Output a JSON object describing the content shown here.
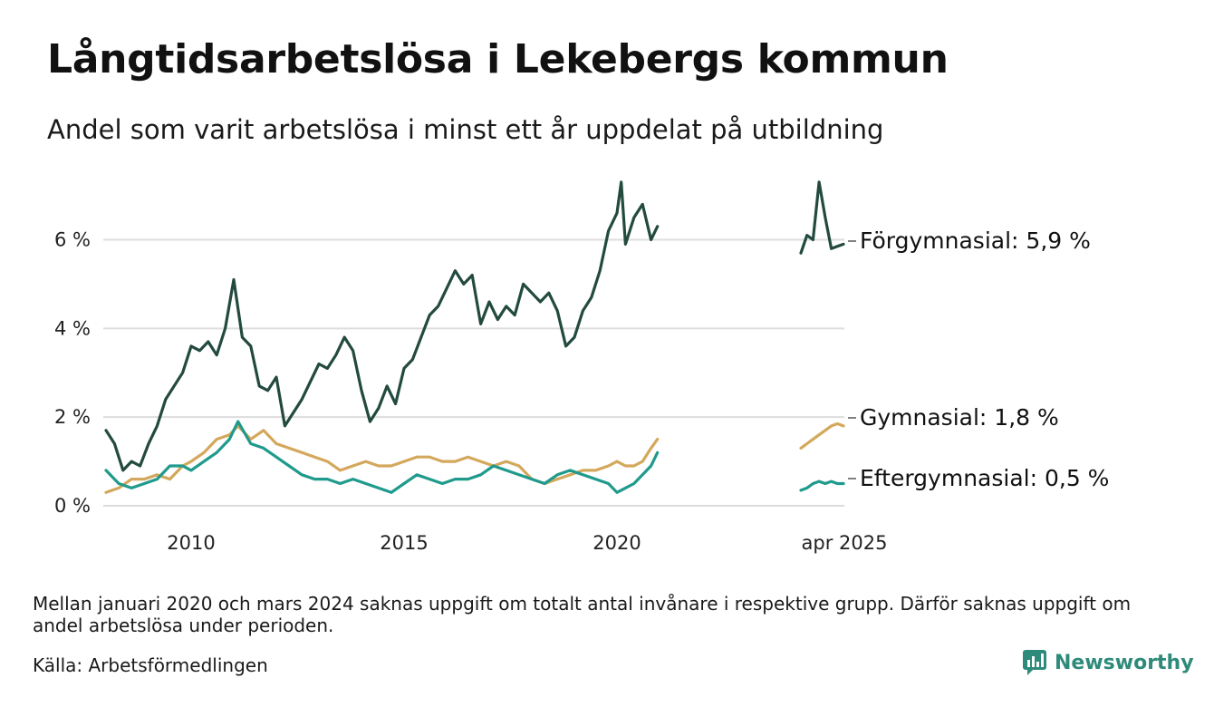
{
  "header": {
    "title": "Långtidsarbetslösa i Lekebergs kommun",
    "subtitle": "Andel som varit arbetslösa i minst ett år uppdelat på utbildning"
  },
  "footer": {
    "note": "Mellan januari 2020 och mars 2024 saknas uppgift om totalt antal invånare i respektive grupp. Därför saknas uppgift om andel arbetslösa under perioden.",
    "source": "Källa: Arbetsförmedlingen",
    "brand": "Newsworthy"
  },
  "colors": {
    "forgymnasial": "#234a3f",
    "gymnasial": "#d4a85c",
    "eftergymnasial": "#1f9a8c",
    "grid": "#dddddd",
    "brand": "#2e8a7a"
  },
  "chart_data": {
    "type": "line",
    "ylim": [
      0,
      7.4
    ],
    "yticks": [
      0,
      2,
      4,
      6
    ],
    "ytick_labels": [
      "0 %",
      "2 %",
      "4 %",
      "6 %"
    ],
    "xticks": [
      2010,
      2015,
      2020
    ],
    "xtick_labels": [
      "2010",
      "2015",
      "2020"
    ],
    "x2_label": "apr 2025",
    "grid": true,
    "legend": "inline-right",
    "series": [
      {
        "key": "forgymnasial",
        "name": "Förgymnasial",
        "label": "Förgymnasial: 5,9 %",
        "segment1": {
          "x": [
            2008.0,
            2008.2,
            2008.4,
            2008.6,
            2008.8,
            2009.0,
            2009.2,
            2009.4,
            2009.6,
            2009.8,
            2010.0,
            2010.2,
            2010.4,
            2010.6,
            2010.8,
            2011.0,
            2011.2,
            2011.4,
            2011.6,
            2011.8,
            2012.0,
            2012.2,
            2012.4,
            2012.6,
            2012.8,
            2013.0,
            2013.2,
            2013.4,
            2013.6,
            2013.8,
            2014.0,
            2014.2,
            2014.4,
            2014.6,
            2014.8,
            2015.0,
            2015.2,
            2015.4,
            2015.6,
            2015.8,
            2016.0,
            2016.2,
            2016.4,
            2016.6,
            2016.8,
            2017.0,
            2017.2,
            2017.4,
            2017.6,
            2017.8,
            2018.0,
            2018.2,
            2018.4,
            2018.6,
            2018.8,
            2019.0,
            2019.2,
            2019.4,
            2019.6,
            2019.8,
            2020.0,
            2020.1,
            2020.2,
            2020.4,
            2020.6,
            2020.8,
            2020.95
          ],
          "y": [
            1.7,
            1.4,
            0.8,
            1.0,
            0.9,
            1.4,
            1.8,
            2.4,
            2.7,
            3.0,
            3.6,
            3.5,
            3.7,
            3.4,
            4.0,
            5.1,
            3.8,
            3.6,
            2.7,
            2.6,
            2.9,
            1.8,
            2.1,
            2.4,
            2.8,
            3.2,
            3.1,
            3.4,
            3.8,
            3.5,
            2.6,
            1.9,
            2.2,
            2.7,
            2.3,
            3.1,
            3.3,
            3.8,
            4.3,
            4.5,
            4.9,
            5.3,
            5.0,
            5.2,
            4.1,
            4.6,
            4.2,
            4.5,
            4.3,
            5.0,
            4.8,
            4.6,
            4.8,
            4.4,
            3.6,
            3.8,
            4.4,
            4.7,
            5.3,
            6.2,
            6.6,
            7.3,
            5.9,
            6.5,
            6.8,
            6.0,
            6.3
          ]
        },
        "segment2": {
          "x": [
            2024.25,
            2024.4,
            2024.55,
            2024.7,
            2024.85,
            2025.0,
            2025.15,
            2025.3
          ],
          "y": [
            5.7,
            6.1,
            6.0,
            7.3,
            6.5,
            5.8,
            5.85,
            5.9
          ]
        }
      },
      {
        "key": "gymnasial",
        "name": "Gymnasial",
        "label": "Gymnasial: 1,8 %",
        "segment1": {
          "x": [
            2008.0,
            2008.3,
            2008.6,
            2008.9,
            2009.2,
            2009.5,
            2009.8,
            2010.0,
            2010.3,
            2010.6,
            2010.9,
            2011.1,
            2011.4,
            2011.7,
            2012.0,
            2012.3,
            2012.6,
            2012.9,
            2013.2,
            2013.5,
            2013.8,
            2014.1,
            2014.4,
            2014.7,
            2015.0,
            2015.3,
            2015.6,
            2015.9,
            2016.2,
            2016.5,
            2016.8,
            2017.1,
            2017.4,
            2017.7,
            2018.0,
            2018.3,
            2018.6,
            2018.9,
            2019.2,
            2019.5,
            2019.8,
            2020.0,
            2020.2,
            2020.4,
            2020.6,
            2020.8,
            2020.95
          ],
          "y": [
            0.3,
            0.4,
            0.6,
            0.6,
            0.7,
            0.6,
            0.9,
            1.0,
            1.2,
            1.5,
            1.6,
            1.8,
            1.5,
            1.7,
            1.4,
            1.3,
            1.2,
            1.1,
            1.0,
            0.8,
            0.9,
            1.0,
            0.9,
            0.9,
            1.0,
            1.1,
            1.1,
            1.0,
            1.0,
            1.1,
            1.0,
            0.9,
            1.0,
            0.9,
            0.6,
            0.5,
            0.6,
            0.7,
            0.8,
            0.8,
            0.9,
            1.0,
            0.9,
            0.9,
            1.0,
            1.3,
            1.5
          ]
        },
        "segment2": {
          "x": [
            2024.25,
            2024.4,
            2024.55,
            2024.7,
            2024.85,
            2025.0,
            2025.15,
            2025.3
          ],
          "y": [
            1.3,
            1.4,
            1.5,
            1.6,
            1.7,
            1.8,
            1.85,
            1.8
          ]
        }
      },
      {
        "key": "eftergymnasial",
        "name": "Eftergymnasial",
        "label": "Eftergymnasial: 0,5 %",
        "segment1": {
          "x": [
            2008.0,
            2008.3,
            2008.6,
            2008.9,
            2009.2,
            2009.5,
            2009.8,
            2010.0,
            2010.3,
            2010.6,
            2010.9,
            2011.1,
            2011.4,
            2011.7,
            2012.0,
            2012.3,
            2012.6,
            2012.9,
            2013.2,
            2013.5,
            2013.8,
            2014.1,
            2014.4,
            2014.7,
            2015.0,
            2015.3,
            2015.6,
            2015.9,
            2016.2,
            2016.5,
            2016.8,
            2017.1,
            2017.4,
            2017.7,
            2018.0,
            2018.3,
            2018.6,
            2018.9,
            2019.2,
            2019.5,
            2019.8,
            2020.0,
            2020.2,
            2020.4,
            2020.6,
            2020.8,
            2020.95
          ],
          "y": [
            0.8,
            0.5,
            0.4,
            0.5,
            0.6,
            0.9,
            0.9,
            0.8,
            1.0,
            1.2,
            1.5,
            1.9,
            1.4,
            1.3,
            1.1,
            0.9,
            0.7,
            0.6,
            0.6,
            0.5,
            0.6,
            0.5,
            0.4,
            0.3,
            0.5,
            0.7,
            0.6,
            0.5,
            0.6,
            0.6,
            0.7,
            0.9,
            0.8,
            0.7,
            0.6,
            0.5,
            0.7,
            0.8,
            0.7,
            0.6,
            0.5,
            0.3,
            0.4,
            0.5,
            0.7,
            0.9,
            1.2
          ]
        },
        "segment2": {
          "x": [
            2024.25,
            2024.4,
            2024.55,
            2024.7,
            2024.85,
            2025.0,
            2025.15,
            2025.3
          ],
          "y": [
            0.35,
            0.4,
            0.5,
            0.55,
            0.5,
            0.55,
            0.5,
            0.5
          ]
        }
      }
    ]
  }
}
